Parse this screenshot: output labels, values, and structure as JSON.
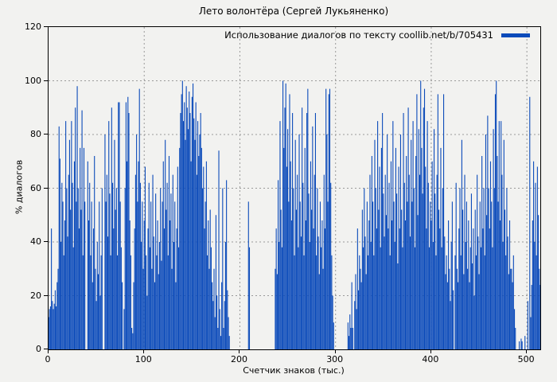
{
  "window": {
    "background": "#f2f2f0"
  },
  "chart_data": {
    "type": "bar",
    "title": "Лето волонтёра (Сергей Лукьяненко)",
    "xlabel": "Счетчик знаков (тыс.)",
    "ylabel": "% диалогов",
    "legend": {
      "label": "Использование диалогов по тексту coollib.net/b/705431",
      "position": "top-right-inside",
      "swatch_color": "#0c4bba"
    },
    "bar_color": "#0c4bba",
    "grid": true,
    "grid_color": "#9a9a9a",
    "border_color": "#000000",
    "xlim": [
      0,
      514
    ],
    "ylim": [
      0,
      120
    ],
    "xticks": [
      0,
      100,
      200,
      300,
      400,
      500
    ],
    "yticks": [
      0,
      20,
      40,
      60,
      80,
      100,
      120
    ],
    "x_start": 0,
    "x_step": 1,
    "series": [
      {
        "name": "Использование диалогов по тексту coollib.net/b/705431",
        "values": [
          12,
          15,
          16,
          45,
          18,
          15,
          17,
          22,
          16,
          25,
          30,
          83,
          71,
          40,
          62,
          55,
          35,
          48,
          85,
          60,
          42,
          65,
          78,
          52,
          85,
          62,
          38,
          70,
          90,
          55,
          98,
          60,
          45,
          75,
          52,
          89,
          35,
          75,
          55,
          0,
          0,
          70,
          48,
          62,
          35,
          55,
          25,
          45,
          72,
          30,
          18,
          40,
          28,
          55,
          20,
          35,
          60,
          0,
          0,
          80,
          55,
          65,
          42,
          85,
          58,
          35,
          90,
          62,
          45,
          78,
          52,
          60,
          35,
          92,
          92,
          55,
          38,
          25,
          0,
          15,
          60,
          92,
          70,
          94,
          88,
          48,
          35,
          8,
          6,
          25,
          45,
          65,
          80,
          55,
          70,
          97,
          62,
          40,
          55,
          30,
          48,
          68,
          35,
          20,
          45,
          62,
          38,
          55,
          30,
          65,
          42,
          25,
          58,
          35,
          48,
          28,
          40,
          60,
          33,
          55,
          70,
          45,
          78,
          52,
          62,
          35,
          72,
          48,
          58,
          30,
          65,
          40,
          55,
          25,
          45,
          68,
          38,
          75,
          88,
          95,
          100,
          85,
          92,
          78,
          98,
          90,
          82,
          96,
          88,
          70,
          94,
          99,
          86,
          78,
          92,
          65,
          85,
          72,
          80,
          88,
          75,
          60,
          68,
          45,
          55,
          70,
          35,
          48,
          30,
          52,
          38,
          25,
          18,
          30,
          12,
          50,
          20,
          8,
          74,
          15,
          5,
          25,
          60,
          8,
          18,
          40,
          63,
          22,
          12,
          5,
          0,
          0,
          0,
          0,
          0,
          0,
          0,
          0,
          0,
          0,
          0,
          0,
          0,
          0,
          0,
          0,
          0,
          0,
          0,
          55,
          38,
          0,
          0,
          0,
          0,
          0,
          0,
          0,
          0,
          0,
          0,
          0,
          0,
          0,
          0,
          0,
          0,
          0,
          0,
          0,
          0,
          0,
          0,
          0,
          0,
          0,
          0,
          30,
          45,
          28,
          63,
          40,
          85,
          52,
          38,
          100,
          75,
          90,
          99,
          68,
          82,
          55,
          95,
          70,
          48,
          88,
          60,
          35,
          78,
          52,
          65,
          38,
          80,
          55,
          42,
          90,
          62,
          35,
          75,
          48,
          88,
          97,
          58,
          40,
          70,
          52,
          83,
          45,
          65,
          88,
          35,
          60,
          42,
          28,
          55,
          38,
          48,
          30,
          65,
          45,
          97,
          80,
          55,
          95,
          97,
          62,
          35,
          20,
          10,
          0,
          0,
          0,
          0,
          0,
          0,
          0,
          0,
          0,
          0,
          0,
          0,
          0,
          0,
          10,
          5,
          13,
          8,
          25,
          8,
          0,
          18,
          28,
          15,
          45,
          22,
          35,
          30,
          25,
          52,
          38,
          60,
          42,
          28,
          55,
          35,
          48,
          65,
          40,
          72,
          55,
          35,
          78,
          60,
          45,
          85,
          52,
          68,
          38,
          75,
          88,
          58,
          42,
          65,
          50,
          80,
          45,
          62,
          35,
          70,
          48,
          85,
          55,
          40,
          75,
          58,
          32,
          68,
          45,
          80,
          52,
          38,
          88,
          62,
          48,
          72,
          55,
          90,
          65,
          42,
          78,
          55,
          85,
          60,
          38,
          72,
          95,
          50,
          82,
          65,
          100,
          75,
          58,
          90,
          97,
          68,
          45,
          85,
          62,
          38,
          55,
          48,
          70,
          40,
          82,
          58,
          35,
          65,
          95,
          52,
          45,
          75,
          38,
          60,
          95,
          42,
          28,
          35,
          25,
          48,
          30,
          18,
          40,
          55,
          22,
          0,
          35,
          62,
          30,
          25,
          45,
          60,
          35,
          78,
          52,
          28,
          65,
          40,
          55,
          30,
          48,
          25,
          38,
          58,
          32,
          45,
          20,
          52,
          35,
          65,
          42,
          28,
          55,
          38,
          72,
          45,
          60,
          35,
          80,
          50,
          87,
          60,
          45,
          70,
          55,
          38,
          82,
          60,
          95,
          100,
          72,
          55,
          85,
          48,
          85,
          65,
          40,
          78,
          52,
          35,
          60,
          42,
          28,
          48,
          30,
          30,
          25,
          35,
          15,
          8,
          0,
          0,
          0,
          3,
          0,
          4,
          3,
          0,
          0,
          5,
          0,
          0,
          18,
          0,
          94,
          12,
          24,
          48,
          70,
          40,
          62,
          35,
          68,
          50,
          30,
          24
        ]
      }
    ]
  }
}
